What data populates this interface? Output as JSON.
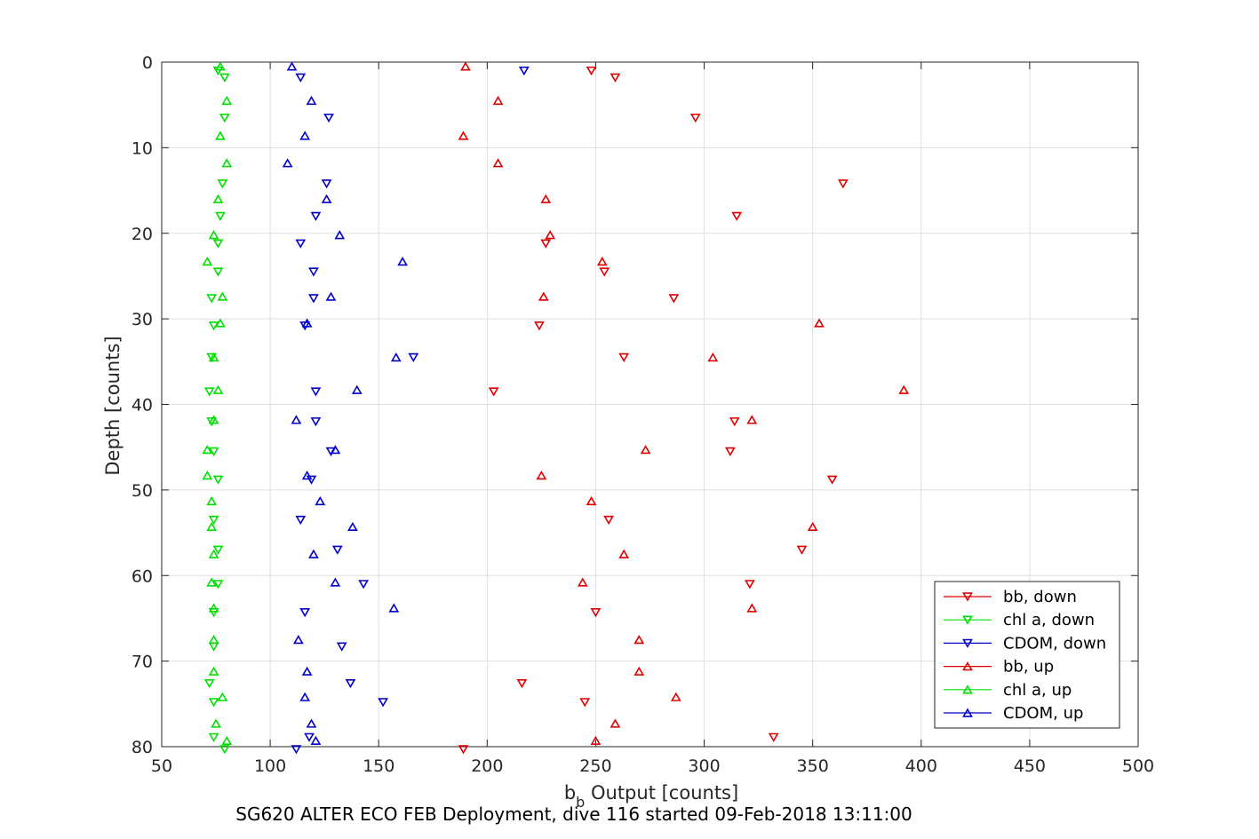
{
  "chart_data": {
    "type": "scatter",
    "title": "",
    "xlabel_main": "b",
    "xlabel_sub": "b",
    "xlabel_rest": " Output [counts]",
    "ylabel": "Depth [counts]",
    "caption": "SG620 ALTER ECO FEB Deployment, dive 116 started 09-Feb-2018 13:11:00",
    "xlim": [
      50,
      500
    ],
    "ylim": [
      0,
      80
    ],
    "y_reversed": true,
    "xticks": [
      50,
      100,
      150,
      200,
      250,
      300,
      350,
      400,
      450,
      500
    ],
    "yticks": [
      0,
      10,
      20,
      30,
      40,
      50,
      60,
      70,
      80
    ],
    "grid": true,
    "legend_position": "bottom-right",
    "series": [
      {
        "name": "bb, down",
        "color": "#e00000",
        "marker": "triangle-down",
        "points": [
          [
            248,
            1
          ],
          [
            259,
            1.8
          ],
          [
            296,
            6.5
          ],
          [
            364,
            14.2
          ],
          [
            315,
            18
          ],
          [
            227,
            21.2
          ],
          [
            254,
            24.5
          ],
          [
            286,
            27.6
          ],
          [
            224,
            30.8
          ],
          [
            263,
            34.5
          ],
          [
            203,
            38.5
          ],
          [
            314,
            42
          ],
          [
            312,
            45.5
          ],
          [
            359,
            48.8
          ],
          [
            256,
            53.5
          ],
          [
            345,
            57
          ],
          [
            321,
            61
          ],
          [
            250,
            64.3
          ],
          [
            216,
            72.6
          ],
          [
            245,
            74.8
          ],
          [
            332,
            78.9
          ],
          [
            189,
            80.3
          ]
        ]
      },
      {
        "name": "chl a, down",
        "color": "#00e000",
        "marker": "triangle-down",
        "points": [
          [
            76,
            1
          ],
          [
            79,
            1.8
          ],
          [
            79,
            6.5
          ],
          [
            78,
            14.2
          ],
          [
            77,
            18
          ],
          [
            76,
            21.2
          ],
          [
            76,
            24.5
          ],
          [
            73,
            27.6
          ],
          [
            74,
            30.8
          ],
          [
            73,
            34.5
          ],
          [
            72,
            38.5
          ],
          [
            73,
            42
          ],
          [
            74,
            45.5
          ],
          [
            76,
            48.8
          ],
          [
            74,
            53.5
          ],
          [
            76,
            57
          ],
          [
            76,
            61
          ],
          [
            74,
            64.3
          ],
          [
            74,
            68.3
          ],
          [
            72,
            72.6
          ],
          [
            74,
            74.8
          ],
          [
            74,
            78.9
          ],
          [
            79,
            80.3
          ]
        ]
      },
      {
        "name": "CDOM, down",
        "color": "#0000c8",
        "marker": "triangle-down",
        "points": [
          [
            217,
            1
          ],
          [
            114,
            1.8
          ],
          [
            127,
            6.5
          ],
          [
            126,
            14.2
          ],
          [
            121,
            18
          ],
          [
            114,
            21.2
          ],
          [
            120,
            24.5
          ],
          [
            120,
            27.6
          ],
          [
            116,
            30.8
          ],
          [
            166,
            34.5
          ],
          [
            121,
            38.5
          ],
          [
            121,
            42
          ],
          [
            128,
            45.5
          ],
          [
            119,
            48.8
          ],
          [
            114,
            53.5
          ],
          [
            131,
            57
          ],
          [
            143,
            61
          ],
          [
            116,
            64.3
          ],
          [
            133,
            68.3
          ],
          [
            137,
            72.6
          ],
          [
            152,
            74.8
          ],
          [
            118,
            78.9
          ],
          [
            112,
            80.3
          ]
        ]
      },
      {
        "name": "bb, up",
        "color": "#e00000",
        "marker": "triangle-up",
        "points": [
          [
            190,
            0.5
          ],
          [
            205,
            4.5
          ],
          [
            189,
            8.6
          ],
          [
            205,
            11.8
          ],
          [
            227,
            16
          ],
          [
            229,
            20.2
          ],
          [
            253,
            23.3
          ],
          [
            226,
            27.4
          ],
          [
            353,
            30.5
          ],
          [
            304,
            34.5
          ],
          [
            392,
            38.3
          ],
          [
            322,
            41.8
          ],
          [
            273,
            45.3
          ],
          [
            225,
            48.3
          ],
          [
            248,
            51.3
          ],
          [
            350,
            54.3
          ],
          [
            263,
            57.5
          ],
          [
            244,
            60.8
          ],
          [
            322,
            63.8
          ],
          [
            270,
            67.5
          ],
          [
            270,
            71.2
          ],
          [
            287,
            74.2
          ],
          [
            259,
            77.3
          ],
          [
            250,
            79.3
          ]
        ]
      },
      {
        "name": "chl a, up",
        "color": "#00e000",
        "marker": "triangle-up",
        "points": [
          [
            77,
            0.5
          ],
          [
            80,
            4.5
          ],
          [
            77,
            8.6
          ],
          [
            80,
            11.8
          ],
          [
            76,
            16
          ],
          [
            74,
            20.2
          ],
          [
            71,
            23.3
          ],
          [
            78,
            27.4
          ],
          [
            77,
            30.5
          ],
          [
            74,
            34.5
          ],
          [
            76,
            38.3
          ],
          [
            74,
            41.8
          ],
          [
            71,
            45.3
          ],
          [
            71,
            48.3
          ],
          [
            73,
            51.3
          ],
          [
            73,
            54.3
          ],
          [
            74,
            57.5
          ],
          [
            73,
            60.8
          ],
          [
            74,
            63.8
          ],
          [
            74,
            67.5
          ],
          [
            74,
            71.2
          ],
          [
            78,
            74.2
          ],
          [
            75,
            77.3
          ],
          [
            80,
            79.3
          ]
        ]
      },
      {
        "name": "CDOM, up",
        "color": "#0000c8",
        "marker": "triangle-up",
        "points": [
          [
            110,
            0.5
          ],
          [
            119,
            4.5
          ],
          [
            116,
            8.6
          ],
          [
            108,
            11.8
          ],
          [
            126,
            16
          ],
          [
            132,
            20.2
          ],
          [
            161,
            23.3
          ],
          [
            128,
            27.4
          ],
          [
            117,
            30.5
          ],
          [
            158,
            34.5
          ],
          [
            140,
            38.3
          ],
          [
            112,
            41.8
          ],
          [
            130,
            45.3
          ],
          [
            117,
            48.3
          ],
          [
            123,
            51.3
          ],
          [
            138,
            54.3
          ],
          [
            120,
            57.5
          ],
          [
            130,
            60.8
          ],
          [
            157,
            63.8
          ],
          [
            113,
            67.5
          ],
          [
            117,
            71.2
          ],
          [
            116,
            74.2
          ],
          [
            119,
            77.3
          ],
          [
            121,
            79.3
          ]
        ]
      }
    ]
  }
}
